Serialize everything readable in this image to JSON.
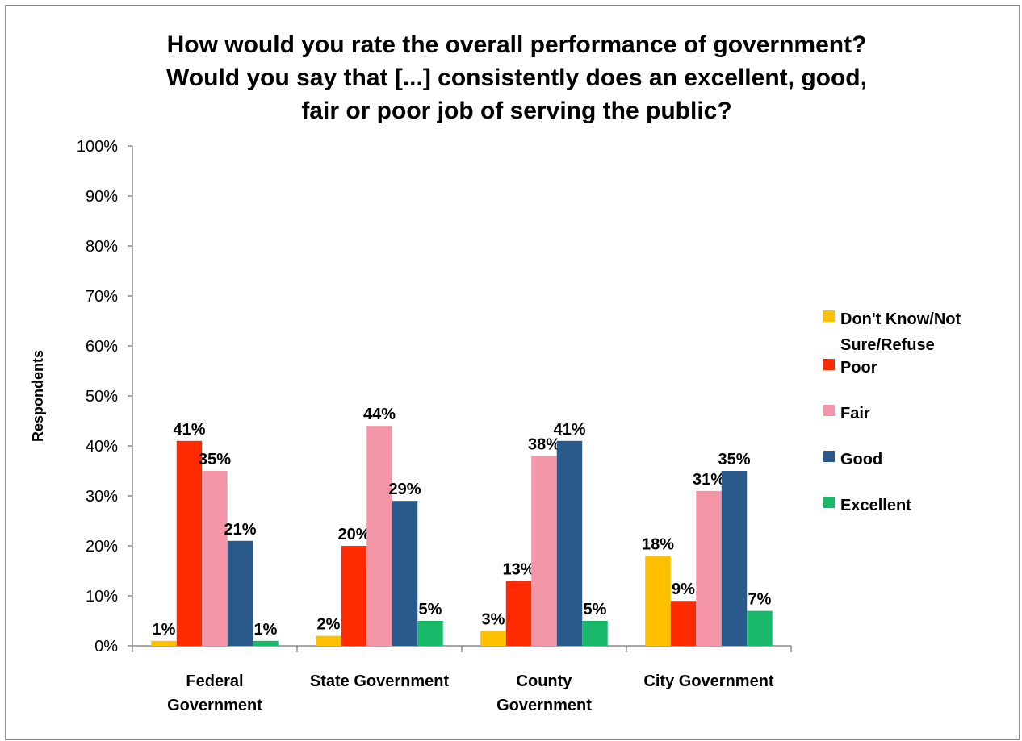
{
  "chart_data": {
    "type": "bar",
    "title_lines": [
      "How would you rate the overall performance of government?",
      "Would you say that [...] consistently does an excellent, good,",
      "fair or poor job of serving the public?"
    ],
    "xlabel": "",
    "ylabel": "Respondents",
    "ylim": [
      0,
      100
    ],
    "y_ticks": [
      "0%",
      "10%",
      "20%",
      "30%",
      "40%",
      "50%",
      "60%",
      "70%",
      "80%",
      "90%",
      "100%"
    ],
    "categories": [
      [
        "Federal",
        "Government"
      ],
      [
        "State Government"
      ],
      [
        "County",
        "Government"
      ],
      [
        "City Government"
      ]
    ],
    "legend_position": "right",
    "series": [
      {
        "name": "Don't Know/Not Sure/Refuse",
        "legend_lines": [
          "Don't Know/Not",
          "Sure/Refuse"
        ],
        "color": "#ffc000",
        "values": [
          1,
          2,
          3,
          18
        ],
        "labels": [
          "1%",
          "2%",
          "3%",
          "18%"
        ]
      },
      {
        "name": "Poor",
        "legend_lines": [
          "Poor"
        ],
        "color": "#ff2a00",
        "values": [
          41,
          20,
          13,
          9
        ],
        "labels": [
          "41%",
          "20%",
          "13%",
          "9%"
        ]
      },
      {
        "name": "Fair",
        "legend_lines": [
          "Fair"
        ],
        "color": "#f596a8",
        "values": [
          35,
          44,
          38,
          31
        ],
        "labels": [
          "35%",
          "44%",
          "38%",
          "31%"
        ]
      },
      {
        "name": "Good",
        "legend_lines": [
          "Good"
        ],
        "color": "#2a5a8c",
        "values": [
          21,
          29,
          41,
          35
        ],
        "labels": [
          "21%",
          "29%",
          "41%",
          "35%"
        ]
      },
      {
        "name": "Excellent",
        "legend_lines": [
          "Excellent"
        ],
        "color": "#1ab96a",
        "values": [
          1,
          5,
          5,
          7
        ],
        "labels": [
          "1%",
          "5%",
          "5%",
          "7%"
        ]
      }
    ]
  }
}
